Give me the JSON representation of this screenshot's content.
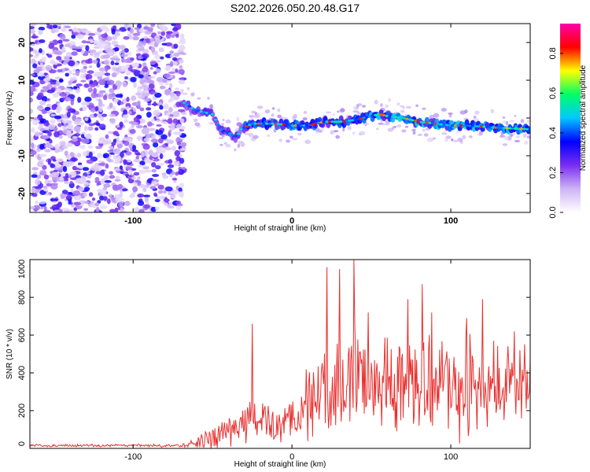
{
  "figure_title": "S202.2026.050.20.48.G17",
  "colors": {
    "snr_line": "#e8302e",
    "colormap": [
      "#ffffff",
      "#cdb4f5",
      "#7a2df0",
      "#0000ff",
      "#00c8ff",
      "#00ff66",
      "#ffff00",
      "#ff0000",
      "#ff00aa"
    ]
  },
  "chart_data": [
    {
      "type": "heatmap",
      "title": "",
      "xlabel": "Height of straight line (km)",
      "ylabel": "Frequency (Hz)",
      "xlim": [
        -165,
        150
      ],
      "ylim": [
        -25,
        25
      ],
      "x_ticks": [
        {
          "value": -100,
          "label": "-100"
        },
        {
          "value": 0,
          "label": "0"
        },
        {
          "value": 100,
          "label": "100"
        }
      ],
      "y_ticks": [
        {
          "value": 20,
          "label": "20"
        },
        {
          "value": 10,
          "label": "10"
        },
        {
          "value": 0,
          "label": "0"
        },
        {
          "value": -10,
          "label": "-10"
        },
        {
          "value": -20,
          "label": "-20"
        }
      ],
      "noise_region_x": [
        -165,
        -68
      ],
      "ridge": {
        "x": [
          -68,
          -60,
          -50,
          -45,
          -40,
          -35,
          -32,
          -25,
          -20,
          -10,
          0,
          10,
          20,
          30,
          40,
          50,
          55,
          60,
          70,
          80,
          90,
          100,
          110,
          120,
          130,
          140,
          150
        ],
        "freq": [
          4,
          2,
          1,
          -3,
          -4,
          -5,
          -3,
          -1.5,
          -1.5,
          -1.5,
          -2,
          -2,
          -1,
          -1,
          -0.5,
          0.5,
          1,
          0.5,
          0,
          -1,
          -1.5,
          -2,
          -2,
          -2.3,
          -2.6,
          -2.8,
          -3
        ]
      },
      "colorbar": {
        "label": "Normalized spectral amplitude",
        "range": [
          0,
          0.95
        ],
        "ticks": [
          {
            "value": 0.0,
            "label": "0.0"
          },
          {
            "value": 0.2,
            "label": "0.2"
          },
          {
            "value": 0.4,
            "label": "0.4"
          },
          {
            "value": 0.6,
            "label": "0.6"
          },
          {
            "value": 0.8,
            "label": "0.8"
          }
        ]
      }
    },
    {
      "type": "line",
      "title": "",
      "xlabel": "Height of straight line (km)",
      "ylabel": "SNR (10 * v/v)",
      "xlim": [
        -165,
        150
      ],
      "ylim": [
        0,
        1000
      ],
      "x_ticks": [
        {
          "value": -100,
          "label": "-100"
        },
        {
          "value": 0,
          "label": "0"
        },
        {
          "value": 100,
          "label": "100"
        }
      ],
      "y_ticks": [
        {
          "value": 0,
          "label": "0"
        },
        {
          "value": 200,
          "label": "200"
        },
        {
          "value": 400,
          "label": "400"
        },
        {
          "value": 600,
          "label": "600"
        },
        {
          "value": 800,
          "label": "800"
        },
        {
          "value": 1000,
          "label": "1000"
        }
      ],
      "envelope": {
        "x": [
          -165,
          -70,
          -60,
          -50,
          -40,
          -30,
          -25,
          -20,
          -10,
          0,
          10,
          20,
          30,
          40,
          50,
          60,
          70,
          80,
          90,
          100,
          110,
          120,
          130,
          140,
          150
        ],
        "mean": [
          15,
          15,
          30,
          70,
          100,
          130,
          160,
          150,
          130,
          150,
          220,
          300,
          330,
          380,
          330,
          320,
          330,
          340,
          300,
          320,
          330,
          320,
          320,
          290,
          310
        ],
        "spread": [
          8,
          10,
          30,
          80,
          110,
          140,
          180,
          150,
          140,
          150,
          240,
          330,
          360,
          400,
          320,
          300,
          320,
          320,
          300,
          310,
          320,
          300,
          300,
          280,
          280
        ]
      },
      "peaks": [
        {
          "x": -25,
          "y": 660
        },
        {
          "x": 22,
          "y": 960
        },
        {
          "x": 30,
          "y": 950
        },
        {
          "x": 39,
          "y": 1000
        },
        {
          "x": 48,
          "y": 720
        },
        {
          "x": 73,
          "y": 790
        },
        {
          "x": 82,
          "y": 870
        },
        {
          "x": 88,
          "y": 720
        },
        {
          "x": 110,
          "y": 690
        },
        {
          "x": 120,
          "y": 790
        },
        {
          "x": 140,
          "y": 620
        }
      ]
    }
  ]
}
